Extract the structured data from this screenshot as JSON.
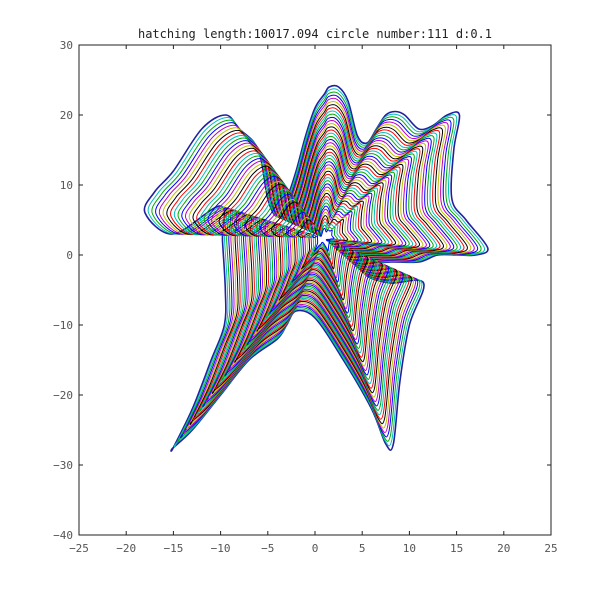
{
  "chart_data": {
    "type": "line",
    "title": "hatching length:10017.094 circle number:111 d:0.1",
    "xlabel": "",
    "ylabel": "",
    "xlim": [
      -25,
      25
    ],
    "ylim": [
      -40,
      30
    ],
    "xticks": [
      -25,
      -20,
      -15,
      -10,
      -5,
      0,
      5,
      10,
      15,
      20,
      25
    ],
    "yticks": [
      30,
      20,
      10,
      0,
      -10,
      -20,
      -30,
      -40
    ],
    "xtick_labels": [
      "−25",
      "−20",
      "−15",
      "−10",
      "−5",
      "0",
      "5",
      "10",
      "15",
      "20",
      "25"
    ],
    "ytick_labels": [
      "30",
      "20",
      "10",
      "0",
      "−10",
      "−20",
      "−30",
      "−40"
    ],
    "grid": false,
    "outline": {
      "x": [
        -15,
        -13,
        -11,
        -9.6,
        -9.5,
        -9.8,
        -10,
        -15,
        -18,
        -17,
        -15,
        -12,
        -9.5,
        -8,
        -6,
        -5,
        -4,
        -3,
        -2,
        -1,
        0,
        1,
        1.5,
        2.5,
        3.5,
        4.5,
        5.5,
        6.5,
        7.5,
        8.5,
        9.5,
        11,
        12.5,
        14,
        15.3,
        14.7,
        14.5,
        16,
        18.3,
        17,
        15,
        13,
        11,
        8,
        5.5,
        5.5,
        8,
        11.5,
        10,
        9,
        8.3,
        7.5,
        6,
        3,
        0,
        -2,
        -3,
        -4,
        -7,
        -10,
        -13,
        -15
      ],
      "y": [
        -27.5,
        -22,
        -15,
        -10,
        -5,
        2,
        7,
        3,
        6,
        9,
        12,
        18,
        20,
        18,
        15,
        8,
        5.5,
        8,
        12,
        17,
        21,
        23,
        24,
        24,
        22,
        17,
        16,
        18,
        20,
        20.5,
        20,
        18,
        18.5,
        20,
        20,
        15,
        8,
        5,
        1,
        0,
        0,
        0,
        -1,
        -1,
        -1.5,
        -3,
        -4,
        -4,
        -10,
        -18,
        -27,
        -27,
        -22,
        -15,
        -9,
        -8,
        -10,
        -12,
        -15,
        -20,
        -25,
        -27.5
      ]
    },
    "contour_colors": [
      "#ff0000",
      "#00bfbf",
      "#00aa00",
      "#0000ff",
      "#bf00bf",
      "#bfbf00",
      "#000000"
    ],
    "outer_color": "#2020a0",
    "contour_count": 111
  }
}
